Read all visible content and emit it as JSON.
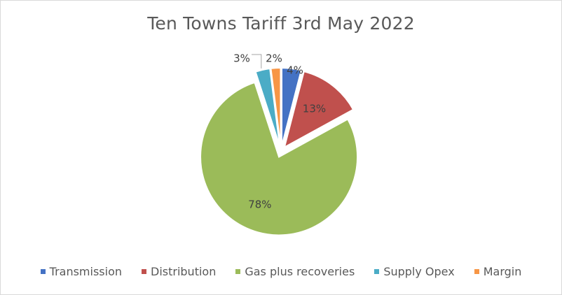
{
  "chart_data": {
    "type": "pie",
    "title": "Ten Towns Tariff 3rd May 2022",
    "categories": [
      "Transmission",
      "Distribution",
      "Gas plus recoveries",
      "Supply Opex",
      "Margin"
    ],
    "values": [
      4,
      13,
      78,
      3,
      2
    ],
    "labels": [
      "4%",
      "13%",
      "78%",
      "3%",
      "2%"
    ],
    "colors": [
      "#4472c4",
      "#c0504d",
      "#9bbb59",
      "#4bacc6",
      "#f79646"
    ],
    "exploded": true,
    "legend_position": "bottom"
  }
}
